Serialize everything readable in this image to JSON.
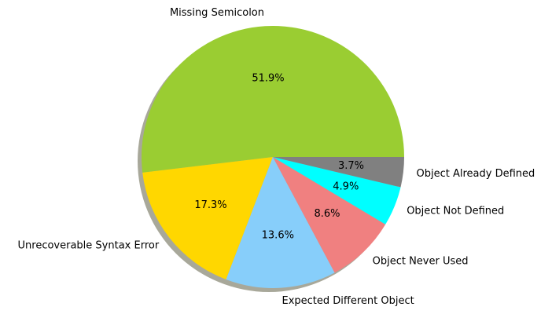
{
  "chart_data": {
    "type": "pie",
    "title": "",
    "categories": [
      "Missing Semicolon",
      "Unrecoverable Syntax Error",
      "Expected Different Object",
      "Object Never Used",
      "Object Not Defined",
      "Object Already Defined"
    ],
    "values": [
      51.9,
      17.3,
      13.6,
      8.6,
      4.9,
      3.7
    ],
    "value_labels": [
      "51.9%",
      "17.3%",
      "13.6%",
      "8.6%",
      "4.9%",
      "3.7%"
    ],
    "colors": [
      "#9acd32",
      "#ffd700",
      "#87cefa",
      "#f08080",
      "#00ffff",
      "#808080"
    ],
    "start_angle": "0 degrees (east), counterclockwise",
    "shadow": true,
    "legend": "none"
  }
}
